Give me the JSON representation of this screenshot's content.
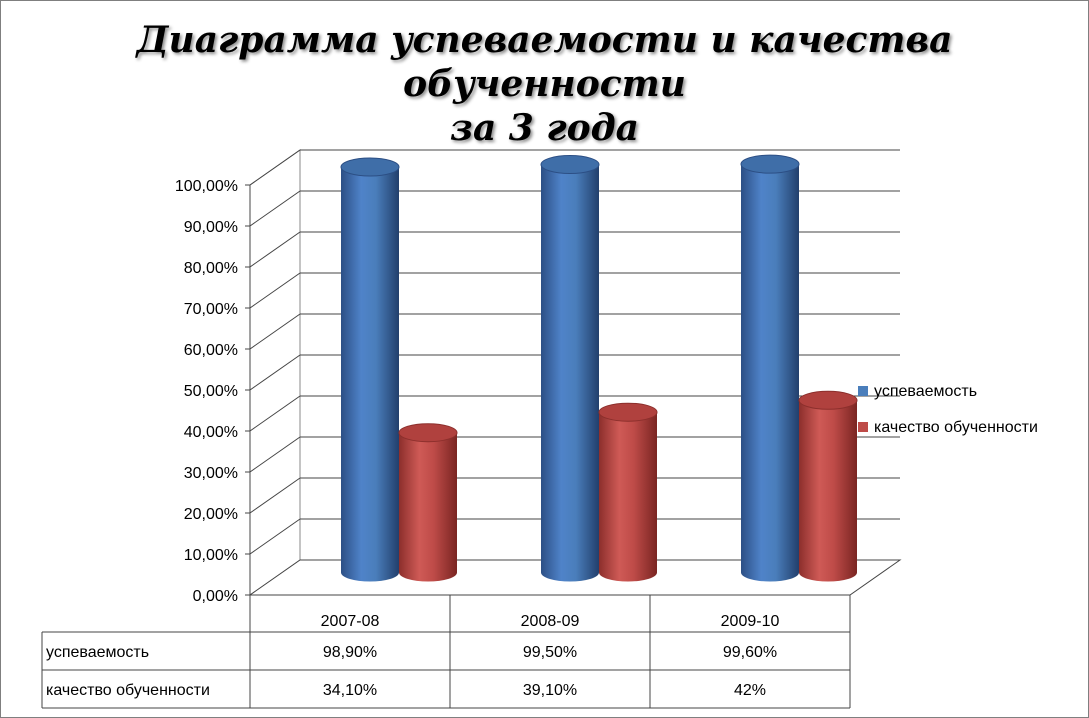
{
  "title": {
    "line1": "Диаграмма успеваемости и качества обученности",
    "line2": "за 3 года"
  },
  "chart_data": {
    "type": "bar",
    "categories": [
      "2007-08",
      "2008-09",
      "2009-10"
    ],
    "series": [
      {
        "name": "успеваемость",
        "values": [
          98.9,
          99.5,
          99.6
        ],
        "labels": [
          "98,90%",
          "99,50%",
          "99,60%"
        ],
        "color": "#4a7ebb"
      },
      {
        "name": "качество обученности",
        "values": [
          34.1,
          39.1,
          42
        ],
        "labels": [
          "34,10%",
          "39,10%",
          "42%"
        ],
        "color": "#be4b48"
      }
    ],
    "yticks": [
      "0,00%",
      "10,00%",
      "20,00%",
      "30,00%",
      "40,00%",
      "50,00%",
      "60,00%",
      "70,00%",
      "80,00%",
      "90,00%",
      "100,00%"
    ],
    "ylim": [
      0,
      100
    ],
    "style": "3d-cylinder",
    "grid": true,
    "legend": "right",
    "data_table": true
  }
}
